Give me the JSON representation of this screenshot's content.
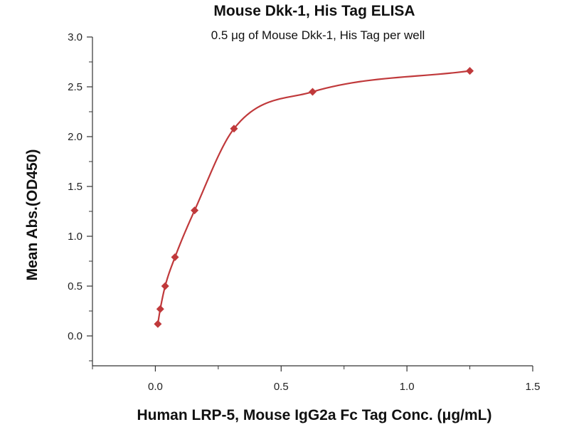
{
  "chart_data": {
    "type": "scatter",
    "title": "Mouse Dkk-1, His Tag ELISA",
    "subtitle": "0.5 μg of Mouse Dkk-1, His Tag per well",
    "xlabel": "Human LRP-5, Mouse IgG2a Fc Tag Conc. (μg/mL)",
    "ylabel": "Mean Abs.(OD450)",
    "xlim": [
      -0.25,
      1.5
    ],
    "ylim": [
      -0.3,
      3.0
    ],
    "xticks": [
      0.0,
      0.5,
      1.0,
      1.5
    ],
    "xtick_labels": [
      "0.0",
      "0.5",
      "1.0",
      "1.5"
    ],
    "yticks": [
      0.0,
      0.5,
      1.0,
      1.5,
      2.0,
      2.5,
      3.0
    ],
    "ytick_labels": [
      "0.0",
      "0.5",
      "1.0",
      "1.5",
      "2.0",
      "2.5",
      "3.0"
    ],
    "grid": false,
    "marker_color": "#c0393b",
    "line_color": "#c0393b",
    "x": [
      0.0098,
      0.0195,
      0.039,
      0.078,
      0.156,
      0.3125,
      0.625,
      1.25
    ],
    "y": [
      0.12,
      0.27,
      0.5,
      0.79,
      1.26,
      2.08,
      2.45,
      2.66
    ]
  }
}
